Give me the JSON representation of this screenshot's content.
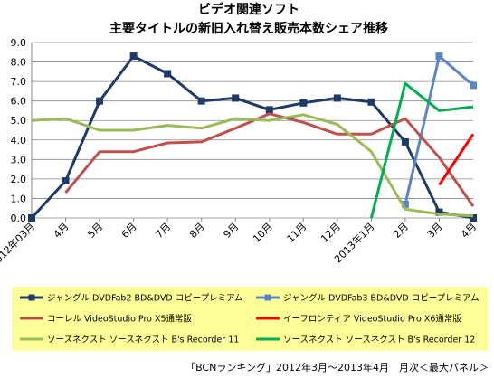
{
  "chart_data": {
    "type": "line",
    "title": [
      "ビデオ関連ソフト",
      "主要タイトルの新旧入れ替え販売本数シェア推移"
    ],
    "categories": [
      "2012年03月",
      "4月",
      "5月",
      "6月",
      "7月",
      "8月",
      "9月",
      "10月",
      "11月",
      "12月",
      "2013年1月",
      "2月",
      "3月",
      "4月"
    ],
    "ylim": [
      0,
      9
    ],
    "yticks": [
      "0.0",
      "1.0",
      "2.0",
      "3.0",
      "4.0",
      "5.0",
      "6.0",
      "7.0",
      "8.0",
      "9.0"
    ],
    "grid": true,
    "legend_position": "bottom",
    "series": [
      {
        "name": "ジャングル DVDFab2 BD&DVD コピープレミアム",
        "color": "#1f3a68",
        "marker": "square",
        "values": [
          0.0,
          1.9,
          6.0,
          8.3,
          7.4,
          6.0,
          6.15,
          5.55,
          5.9,
          6.15,
          5.95,
          3.9,
          0.3,
          0.0
        ]
      },
      {
        "name": "ジャングル DVDFab3 BD&DVD コピープレミアム",
        "color": "#5b86c5",
        "marker": "square",
        "values": [
          null,
          null,
          null,
          null,
          null,
          null,
          null,
          null,
          null,
          null,
          null,
          0.7,
          8.3,
          6.8
        ]
      },
      {
        "name": "コーレル VideoStudio Pro X5通常版",
        "color": "#c0504d",
        "marker": "none",
        "values": [
          null,
          1.3,
          3.4,
          3.4,
          3.85,
          3.9,
          4.6,
          5.35,
          4.9,
          4.3,
          4.3,
          5.1,
          3.1,
          0.6
        ]
      },
      {
        "name": "イーフロンティア VideoStudio Pro X6通常版",
        "color": "#ff0000",
        "marker": "none",
        "values": [
          null,
          null,
          null,
          null,
          null,
          null,
          null,
          null,
          null,
          null,
          null,
          null,
          1.7,
          4.3
        ]
      },
      {
        "name": "ソースネクスト ソースネクスト B's Recorder 11",
        "color": "#9bbb59",
        "marker": "none",
        "values": [
          5.0,
          5.1,
          4.5,
          4.5,
          4.75,
          4.6,
          5.1,
          5.0,
          5.3,
          4.8,
          3.4,
          0.45,
          0.2,
          0.1
        ]
      },
      {
        "name": "ソースネクスト ソースネクスト B's Recorder 12",
        "color": "#00b050",
        "marker": "none",
        "values": [
          null,
          null,
          null,
          null,
          null,
          null,
          null,
          null,
          null,
          null,
          0.0,
          6.9,
          5.5,
          5.7
        ]
      }
    ]
  },
  "source_note": "「BCNランキング」2012年3月～2013年4月　月次＜最大パネル＞",
  "colors": {
    "legend_bg": "#ffff99",
    "gridline": "#888888",
    "axis": "#888888"
  }
}
